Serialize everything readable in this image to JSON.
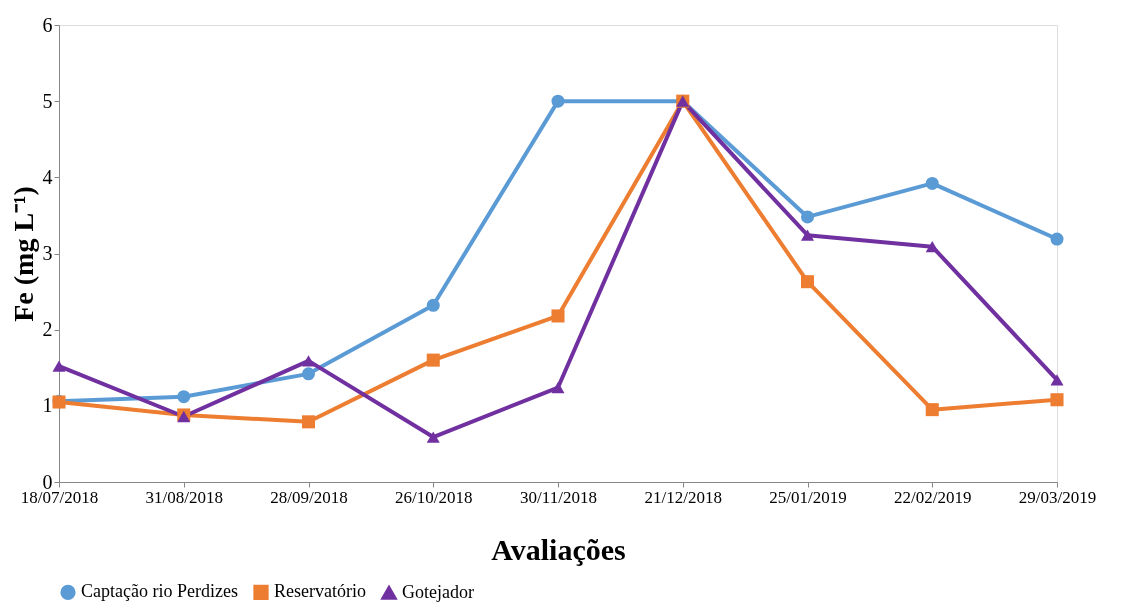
{
  "chart_data": {
    "type": "line",
    "xlabel": "Avaliações",
    "ylabel": "Fe (mg L⁻¹)",
    "categories": [
      "18/07/2018",
      "31/08/2018",
      "28/09/2018",
      "26/10/2018",
      "30/11/2018",
      "21/12/2018",
      "25/01/2019",
      "22/02/2019",
      "29/03/2019"
    ],
    "series": [
      {
        "name": "Captação rio Perdizes",
        "color": "#5b9bd5",
        "marker": "circle",
        "values": [
          1.06,
          1.12,
          1.42,
          2.32,
          5.0,
          5.0,
          3.48,
          3.92,
          3.19
        ]
      },
      {
        "name": "Reservatório",
        "color": "#ed7d31",
        "marker": "square",
        "values": [
          1.05,
          0.88,
          0.79,
          1.6,
          2.18,
          5.0,
          2.63,
          0.95,
          1.08
        ]
      },
      {
        "name": "Gotejador",
        "color": "#7030a0",
        "marker": "triangle",
        "values": [
          1.52,
          0.86,
          1.59,
          0.59,
          1.24,
          5.0,
          3.24,
          3.09,
          1.34
        ]
      }
    ],
    "ylim": [
      0,
      6
    ],
    "yticks": [
      0,
      1,
      2,
      3,
      4,
      5,
      6
    ],
    "grid": false,
    "legend": "bottom",
    "line_style": "solid"
  }
}
